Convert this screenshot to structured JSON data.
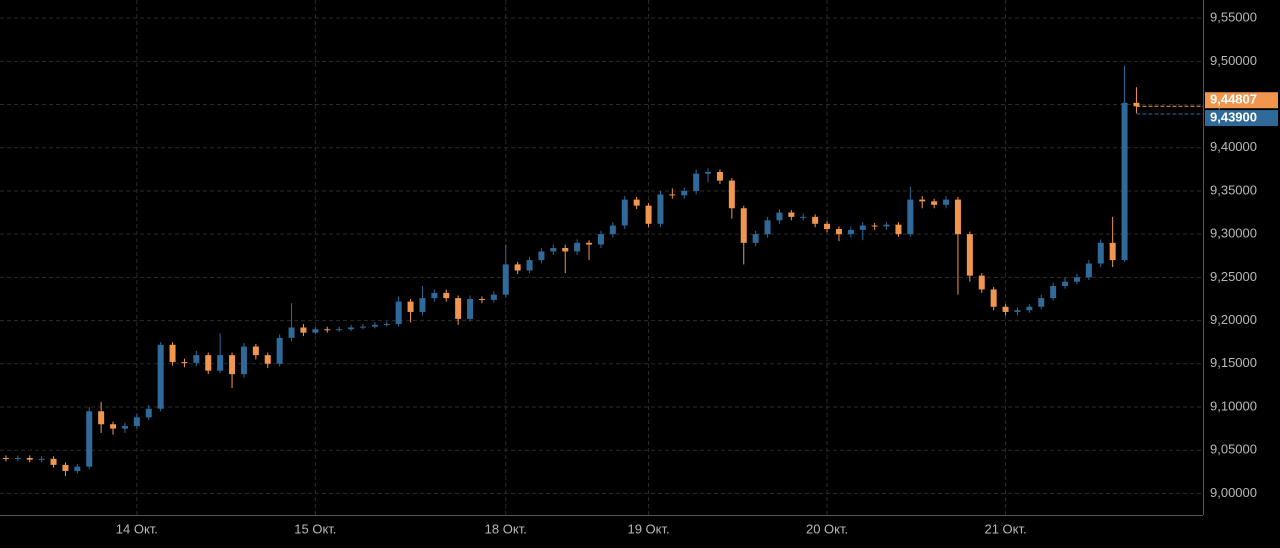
{
  "chart_data": {
    "type": "candlestick",
    "categories": [
      null,
      null,
      null,
      null,
      null,
      null,
      null,
      null,
      null,
      null,
      null,
      "14 Окт.",
      null,
      null,
      null,
      null,
      null,
      null,
      null,
      null,
      null,
      null,
      null,
      null,
      null,
      null,
      "15 Окт.",
      null,
      null,
      null,
      null,
      null,
      null,
      null,
      null,
      null,
      null,
      null,
      null,
      null,
      null,
      null,
      "18 Окт.",
      null,
      null,
      null,
      null,
      null,
      null,
      null,
      null,
      null,
      null,
      null,
      "19 Окт.",
      null,
      null,
      null,
      null,
      null,
      null,
      null,
      null,
      null,
      null,
      null,
      null,
      null,
      null,
      "20 Окт.",
      null,
      null,
      null,
      null,
      null,
      null,
      null,
      null,
      null,
      null,
      null,
      null,
      null,
      null,
      "21 Окт.",
      null,
      null,
      null,
      null,
      null,
      null,
      null,
      null,
      null,
      null,
      null
    ],
    "open": [
      9.041,
      9.04,
      9.041,
      9.039,
      9.04,
      9.033,
      9.026,
      9.031,
      9.095,
      9.08,
      9.075,
      9.078,
      9.088,
      9.098,
      9.172,
      9.152,
      9.151,
      9.16,
      9.142,
      9.16,
      9.138,
      9.17,
      9.16,
      9.15,
      9.18,
      9.192,
      9.186,
      9.19,
      9.189,
      9.19,
      9.192,
      9.193,
      9.195,
      9.196,
      9.222,
      9.21,
      9.226,
      9.232,
      9.226,
      9.202,
      9.225,
      9.224,
      9.23,
      9.265,
      9.258,
      9.27,
      9.28,
      9.284,
      9.28,
      9.29,
      9.288,
      9.3,
      9.31,
      9.34,
      9.333,
      9.312,
      9.346,
      9.345,
      9.35,
      9.37,
      9.372,
      9.362,
      9.33,
      9.29,
      9.3,
      9.316,
      9.325,
      9.32,
      9.32,
      9.312,
      9.306,
      9.3,
      9.305,
      9.31,
      9.309,
      9.311,
      9.3,
      9.34,
      9.338,
      9.334,
      9.34,
      9.3,
      9.252,
      9.236,
      9.216,
      9.21,
      9.212,
      9.216,
      9.226,
      9.24,
      9.245,
      9.25,
      9.266,
      9.29,
      9.27,
      9.452
    ],
    "high": [
      9.044,
      9.044,
      9.044,
      9.043,
      9.043,
      9.036,
      9.034,
      9.1,
      9.106,
      9.083,
      9.082,
      9.092,
      9.102,
      9.175,
      9.175,
      9.156,
      9.165,
      9.163,
      9.185,
      9.163,
      9.174,
      9.173,
      9.163,
      9.184,
      9.22,
      9.196,
      9.193,
      9.193,
      9.193,
      9.195,
      9.196,
      9.198,
      9.199,
      9.228,
      9.225,
      9.24,
      9.236,
      9.236,
      9.229,
      9.229,
      9.228,
      9.234,
      9.288,
      9.268,
      9.274,
      9.284,
      9.288,
      9.288,
      9.294,
      9.293,
      9.304,
      9.314,
      9.344,
      9.343,
      9.336,
      9.35,
      9.353,
      9.354,
      9.375,
      9.376,
      9.375,
      9.365,
      9.333,
      9.304,
      9.32,
      9.329,
      9.328,
      9.324,
      9.323,
      9.315,
      9.309,
      9.309,
      9.314,
      9.313,
      9.314,
      9.314,
      9.355,
      9.344,
      9.341,
      9.344,
      9.343,
      9.303,
      9.255,
      9.239,
      9.219,
      9.215,
      9.219,
      9.23,
      9.244,
      9.25,
      9.254,
      9.27,
      9.294,
      9.32,
      9.495,
      9.47
    ],
    "low": [
      9.037,
      9.037,
      9.036,
      9.036,
      9.03,
      9.02,
      9.023,
      9.028,
      9.07,
      9.068,
      9.07,
      9.075,
      9.085,
      9.095,
      9.148,
      9.146,
      9.147,
      9.138,
      9.139,
      9.122,
      9.134,
      9.155,
      9.145,
      9.147,
      9.176,
      9.182,
      9.184,
      9.186,
      9.187,
      9.188,
      9.19,
      9.191,
      9.193,
      9.193,
      9.198,
      9.206,
      9.222,
      9.222,
      9.195,
      9.199,
      9.22,
      9.221,
      9.227,
      9.254,
      9.255,
      9.266,
      9.276,
      9.255,
      9.276,
      9.27,
      9.284,
      9.296,
      9.306,
      9.329,
      9.308,
      9.308,
      9.341,
      9.341,
      9.346,
      9.36,
      9.358,
      9.318,
      9.265,
      9.286,
      9.296,
      9.312,
      9.316,
      9.316,
      9.308,
      9.302,
      9.292,
      9.296,
      9.293,
      9.305,
      9.305,
      9.297,
      9.297,
      9.33,
      9.33,
      9.33,
      9.23,
      9.245,
      9.232,
      9.212,
      9.206,
      9.206,
      9.209,
      9.213,
      9.223,
      9.237,
      9.242,
      9.247,
      9.262,
      9.262,
      9.268,
      9.44
    ],
    "close": [
      9.04,
      9.041,
      9.039,
      9.04,
      9.033,
      9.026,
      9.031,
      9.095,
      9.08,
      9.075,
      9.078,
      9.088,
      9.098,
      9.172,
      9.152,
      9.151,
      9.16,
      9.142,
      9.16,
      9.138,
      9.17,
      9.16,
      9.15,
      9.18,
      9.192,
      9.186,
      9.19,
      9.189,
      9.19,
      9.192,
      9.193,
      9.195,
      9.196,
      9.222,
      9.21,
      9.226,
      9.232,
      9.226,
      9.202,
      9.225,
      9.224,
      9.23,
      9.265,
      9.258,
      9.27,
      9.28,
      9.284,
      9.28,
      9.29,
      9.288,
      9.3,
      9.31,
      9.34,
      9.333,
      9.312,
      9.346,
      9.345,
      9.35,
      9.37,
      9.372,
      9.362,
      9.33,
      9.29,
      9.3,
      9.316,
      9.325,
      9.32,
      9.32,
      9.312,
      9.306,
      9.3,
      9.305,
      9.31,
      9.309,
      9.311,
      9.3,
      9.34,
      9.338,
      9.334,
      9.34,
      9.3,
      9.252,
      9.236,
      9.216,
      9.21,
      9.212,
      9.216,
      9.226,
      9.24,
      9.245,
      9.25,
      9.266,
      9.29,
      9.27,
      9.452,
      9.448
    ],
    "up_color": "#2f6a9a",
    "down_color": "#f0964e",
    "ylim": [
      8.975,
      9.571
    ],
    "yticks": [
      {
        "value": 9.0,
        "label": "9,00000"
      },
      {
        "value": 9.05,
        "label": "9,05000"
      },
      {
        "value": 9.1,
        "label": "9,10000"
      },
      {
        "value": 9.15,
        "label": "9,15000"
      },
      {
        "value": 9.2,
        "label": "9,20000"
      },
      {
        "value": 9.25,
        "label": "9,25000"
      },
      {
        "value": 9.3,
        "label": "9,30000"
      },
      {
        "value": 9.35,
        "label": "9,35000"
      },
      {
        "value": 9.4,
        "label": "9,40000"
      },
      {
        "value": 9.45,
        "label": "9,45000"
      },
      {
        "value": 9.5,
        "label": "9,50000"
      },
      {
        "value": 9.55,
        "label": "9,55000"
      }
    ],
    "price_lines": [
      {
        "value": 9.44807,
        "label": "9,44807",
        "color": "#f0964e"
      },
      {
        "value": 9.439,
        "label": "9,43900",
        "color": "#2f6a9a"
      }
    ],
    "grid": true
  }
}
